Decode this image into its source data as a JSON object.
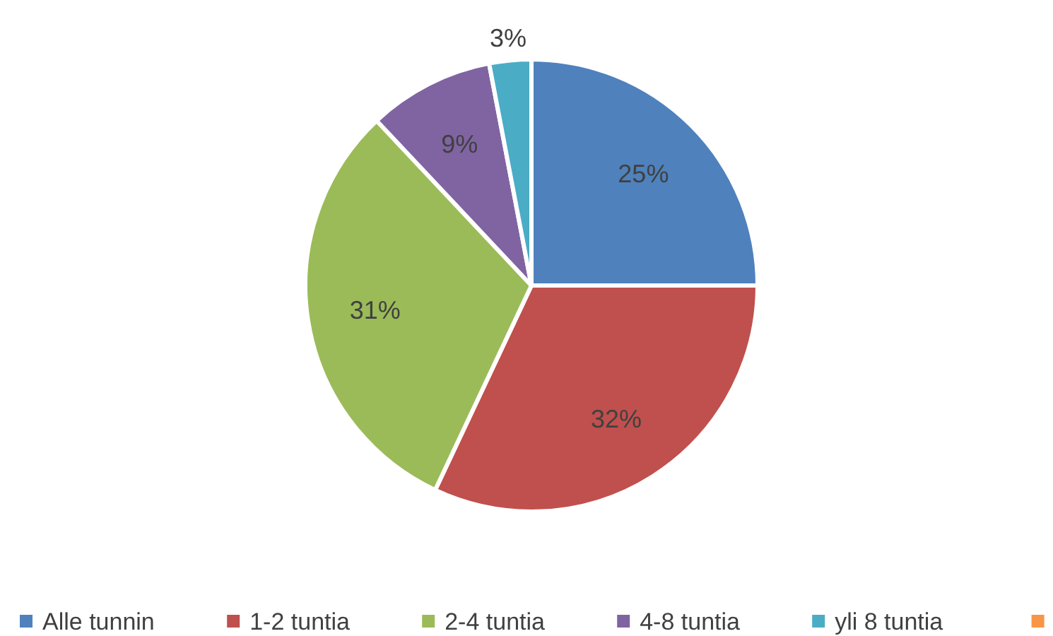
{
  "chart_data": {
    "type": "pie",
    "categories": [
      "Alle tunnin",
      "1-2 tuntia",
      "2-4 tuntia",
      "4-8 tuntia",
      "yli 8 tuntia",
      null
    ],
    "values": [
      25,
      32,
      31,
      9,
      3,
      0
    ],
    "colors": [
      "#4f81bd",
      "#c0504d",
      "#9bbb59",
      "#8064a2",
      "#4bacc6",
      "#f79646"
    ],
    "value_labels": [
      "25%",
      "32%",
      "31%",
      "9%",
      "3%",
      null
    ],
    "legend": "bottom"
  }
}
